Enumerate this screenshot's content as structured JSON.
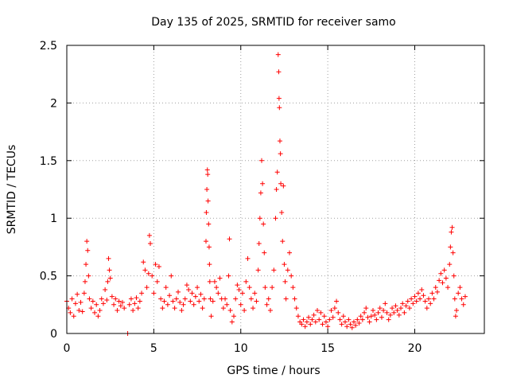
{
  "chart_data": {
    "type": "scatter",
    "title": "Day 135 of 2025, SRMTID for receiver samo",
    "xlabel": "GPS time / hours",
    "ylabel": "SRMTID / TECUs",
    "xlim": [
      0,
      24
    ],
    "ylim": [
      0,
      2.5
    ],
    "xticks": [
      0,
      5,
      10,
      15,
      20
    ],
    "xtick_labels": [
      "0",
      "5",
      "10",
      "15",
      "20"
    ],
    "yticks": [
      0,
      0.5,
      1,
      1.5,
      2,
      2.5
    ],
    "ytick_labels": [
      "0",
      "0.5",
      "1",
      "1.5",
      "2",
      "2.5"
    ],
    "grid": true,
    "marker": "plus",
    "series": [
      {
        "name": "SRMTID",
        "color": "#ff0000",
        "points": [
          [
            0.0,
            0.28
          ],
          [
            0.1,
            0.22
          ],
          [
            0.2,
            0.18
          ],
          [
            0.3,
            0.3
          ],
          [
            0.4,
            0.15
          ],
          [
            0.5,
            0.26
          ],
          [
            0.6,
            0.34
          ],
          [
            0.7,
            0.2
          ],
          [
            0.8,
            0.27
          ],
          [
            0.9,
            0.19
          ],
          [
            1.0,
            0.35
          ],
          [
            1.05,
            0.45
          ],
          [
            1.1,
            0.6
          ],
          [
            1.15,
            0.8
          ],
          [
            1.2,
            0.72
          ],
          [
            1.25,
            0.5
          ],
          [
            1.3,
            0.3
          ],
          [
            1.4,
            0.22
          ],
          [
            1.5,
            0.28
          ],
          [
            1.6,
            0.18
          ],
          [
            1.7,
            0.25
          ],
          [
            1.8,
            0.15
          ],
          [
            1.9,
            0.2
          ],
          [
            2.0,
            0.3
          ],
          [
            2.1,
            0.26
          ],
          [
            2.2,
            0.38
          ],
          [
            2.3,
            0.29
          ],
          [
            2.35,
            0.45
          ],
          [
            2.4,
            0.65
          ],
          [
            2.45,
            0.55
          ],
          [
            2.5,
            0.48
          ],
          [
            2.6,
            0.32
          ],
          [
            2.7,
            0.25
          ],
          [
            2.8,
            0.3
          ],
          [
            2.9,
            0.2
          ],
          [
            3.0,
            0.28
          ],
          [
            3.1,
            0.24
          ],
          [
            3.2,
            0.27
          ],
          [
            3.3,
            0.22
          ],
          [
            3.5,
            0.0
          ],
          [
            3.6,
            0.25
          ],
          [
            3.7,
            0.3
          ],
          [
            3.8,
            0.2
          ],
          [
            3.9,
            0.26
          ],
          [
            4.0,
            0.31
          ],
          [
            4.1,
            0.22
          ],
          [
            4.2,
            0.28
          ],
          [
            4.3,
            0.35
          ],
          [
            4.4,
            0.62
          ],
          [
            4.5,
            0.55
          ],
          [
            4.6,
            0.4
          ],
          [
            4.7,
            0.52
          ],
          [
            4.75,
            0.85
          ],
          [
            4.8,
            0.78
          ],
          [
            4.9,
            0.5
          ],
          [
            5.0,
            0.35
          ],
          [
            5.1,
            0.6
          ],
          [
            5.2,
            0.45
          ],
          [
            5.3,
            0.58
          ],
          [
            5.4,
            0.3
          ],
          [
            5.5,
            0.22
          ],
          [
            5.6,
            0.28
          ],
          [
            5.7,
            0.4
          ],
          [
            5.8,
            0.25
          ],
          [
            5.9,
            0.33
          ],
          [
            6.0,
            0.5
          ],
          [
            6.1,
            0.28
          ],
          [
            6.2,
            0.22
          ],
          [
            6.3,
            0.3
          ],
          [
            6.4,
            0.36
          ],
          [
            6.5,
            0.27
          ],
          [
            6.6,
            0.2
          ],
          [
            6.7,
            0.25
          ],
          [
            6.8,
            0.3
          ],
          [
            6.9,
            0.42
          ],
          [
            7.0,
            0.38
          ],
          [
            7.1,
            0.28
          ],
          [
            7.2,
            0.35
          ],
          [
            7.3,
            0.25
          ],
          [
            7.4,
            0.32
          ],
          [
            7.5,
            0.4
          ],
          [
            7.6,
            0.28
          ],
          [
            7.7,
            0.34
          ],
          [
            7.8,
            0.22
          ],
          [
            7.9,
            0.3
          ],
          [
            8.0,
            0.8
          ],
          [
            8.02,
            1.05
          ],
          [
            8.05,
            1.25
          ],
          [
            8.08,
            1.42
          ],
          [
            8.1,
            1.38
          ],
          [
            8.12,
            1.15
          ],
          [
            8.15,
            0.95
          ],
          [
            8.18,
            0.75
          ],
          [
            8.2,
            0.6
          ],
          [
            8.22,
            0.45
          ],
          [
            8.25,
            0.3
          ],
          [
            8.3,
            0.15
          ],
          [
            8.4,
            0.28
          ],
          [
            8.5,
            0.45
          ],
          [
            8.6,
            0.4
          ],
          [
            8.7,
            0.35
          ],
          [
            8.8,
            0.48
          ],
          [
            8.9,
            0.3
          ],
          [
            9.0,
            0.22
          ],
          [
            9.1,
            0.3
          ],
          [
            9.2,
            0.25
          ],
          [
            9.3,
            0.5
          ],
          [
            9.35,
            0.82
          ],
          [
            9.4,
            0.2
          ],
          [
            9.5,
            0.1
          ],
          [
            9.6,
            0.15
          ],
          [
            9.7,
            0.3
          ],
          [
            9.8,
            0.42
          ],
          [
            9.9,
            0.38
          ],
          [
            10.0,
            0.25
          ],
          [
            10.1,
            0.35
          ],
          [
            10.2,
            0.2
          ],
          [
            10.3,
            0.45
          ],
          [
            10.4,
            0.65
          ],
          [
            10.5,
            0.4
          ],
          [
            10.6,
            0.3
          ],
          [
            10.7,
            0.22
          ],
          [
            10.8,
            0.35
          ],
          [
            10.9,
            0.28
          ],
          [
            11.0,
            0.55
          ],
          [
            11.05,
            0.78
          ],
          [
            11.1,
            1.0
          ],
          [
            11.15,
            1.22
          ],
          [
            11.2,
            1.5
          ],
          [
            11.25,
            1.3
          ],
          [
            11.3,
            0.95
          ],
          [
            11.35,
            0.7
          ],
          [
            11.4,
            0.4
          ],
          [
            11.5,
            0.25
          ],
          [
            11.6,
            0.3
          ],
          [
            11.7,
            0.2
          ],
          [
            11.8,
            0.4
          ],
          [
            11.9,
            0.55
          ],
          [
            12.0,
            1.0
          ],
          [
            12.05,
            1.25
          ],
          [
            12.1,
            1.4
          ],
          [
            12.15,
            2.42
          ],
          [
            12.18,
            2.27
          ],
          [
            12.2,
            2.04
          ],
          [
            12.22,
            1.96
          ],
          [
            12.25,
            1.67
          ],
          [
            12.28,
            1.56
          ],
          [
            12.3,
            1.3
          ],
          [
            12.35,
            1.05
          ],
          [
            12.4,
            0.8
          ],
          [
            12.45,
            1.28
          ],
          [
            12.5,
            0.6
          ],
          [
            12.55,
            0.45
          ],
          [
            12.6,
            0.3
          ],
          [
            12.7,
            0.55
          ],
          [
            12.8,
            0.7
          ],
          [
            12.9,
            0.5
          ],
          [
            13.0,
            0.4
          ],
          [
            13.1,
            0.3
          ],
          [
            13.2,
            0.22
          ],
          [
            13.3,
            0.15
          ],
          [
            13.4,
            0.1
          ],
          [
            13.5,
            0.08
          ],
          [
            13.6,
            0.12
          ],
          [
            13.7,
            0.06
          ],
          [
            13.8,
            0.1
          ],
          [
            13.9,
            0.14
          ],
          [
            14.0,
            0.08
          ],
          [
            14.1,
            0.12
          ],
          [
            14.2,
            0.16
          ],
          [
            14.3,
            0.1
          ],
          [
            14.4,
            0.2
          ],
          [
            14.5,
            0.12
          ],
          [
            14.6,
            0.18
          ],
          [
            14.7,
            0.08
          ],
          [
            14.8,
            0.15
          ],
          [
            14.9,
            0.1
          ],
          [
            15.0,
            0.06
          ],
          [
            15.1,
            0.12
          ],
          [
            15.2,
            0.2
          ],
          [
            15.3,
            0.14
          ],
          [
            15.4,
            0.22
          ],
          [
            15.5,
            0.28
          ],
          [
            15.6,
            0.18
          ],
          [
            15.7,
            0.12
          ],
          [
            15.8,
            0.08
          ],
          [
            15.9,
            0.15
          ],
          [
            16.0,
            0.1
          ],
          [
            16.1,
            0.06
          ],
          [
            16.2,
            0.12
          ],
          [
            16.3,
            0.08
          ],
          [
            16.4,
            0.05
          ],
          [
            16.5,
            0.1
          ],
          [
            16.6,
            0.07
          ],
          [
            16.7,
            0.12
          ],
          [
            16.8,
            0.09
          ],
          [
            16.9,
            0.15
          ],
          [
            17.0,
            0.12
          ],
          [
            17.1,
            0.18
          ],
          [
            17.2,
            0.22
          ],
          [
            17.3,
            0.14
          ],
          [
            17.4,
            0.1
          ],
          [
            17.5,
            0.15
          ],
          [
            17.6,
            0.2
          ],
          [
            17.7,
            0.16
          ],
          [
            17.8,
            0.12
          ],
          [
            17.9,
            0.18
          ],
          [
            18.0,
            0.22
          ],
          [
            18.1,
            0.14
          ],
          [
            18.2,
            0.2
          ],
          [
            18.3,
            0.26
          ],
          [
            18.4,
            0.18
          ],
          [
            18.5,
            0.12
          ],
          [
            18.6,
            0.16
          ],
          [
            18.7,
            0.22
          ],
          [
            18.8,
            0.18
          ],
          [
            18.9,
            0.24
          ],
          [
            19.0,
            0.2
          ],
          [
            19.1,
            0.16
          ],
          [
            19.2,
            0.22
          ],
          [
            19.3,
            0.26
          ],
          [
            19.4,
            0.18
          ],
          [
            19.5,
            0.24
          ],
          [
            19.6,
            0.28
          ],
          [
            19.7,
            0.22
          ],
          [
            19.8,
            0.3
          ],
          [
            19.9,
            0.26
          ],
          [
            20.0,
            0.32
          ],
          [
            20.1,
            0.28
          ],
          [
            20.2,
            0.35
          ],
          [
            20.3,
            0.3
          ],
          [
            20.4,
            0.38
          ],
          [
            20.5,
            0.33
          ],
          [
            20.6,
            0.28
          ],
          [
            20.7,
            0.22
          ],
          [
            20.8,
            0.3
          ],
          [
            20.9,
            0.26
          ],
          [
            21.0,
            0.35
          ],
          [
            21.1,
            0.3
          ],
          [
            21.2,
            0.4
          ],
          [
            21.3,
            0.36
          ],
          [
            21.4,
            0.46
          ],
          [
            21.5,
            0.52
          ],
          [
            21.6,
            0.44
          ],
          [
            21.7,
            0.55
          ],
          [
            21.8,
            0.48
          ],
          [
            21.9,
            0.4
          ],
          [
            22.0,
            0.6
          ],
          [
            22.05,
            0.75
          ],
          [
            22.1,
            0.88
          ],
          [
            22.15,
            0.92
          ],
          [
            22.2,
            0.7
          ],
          [
            22.25,
            0.5
          ],
          [
            22.3,
            0.3
          ],
          [
            22.35,
            0.15
          ],
          [
            22.4,
            0.2
          ],
          [
            22.5,
            0.35
          ],
          [
            22.6,
            0.4
          ],
          [
            22.7,
            0.3
          ],
          [
            22.8,
            0.25
          ],
          [
            22.9,
            0.32
          ]
        ]
      }
    ]
  }
}
